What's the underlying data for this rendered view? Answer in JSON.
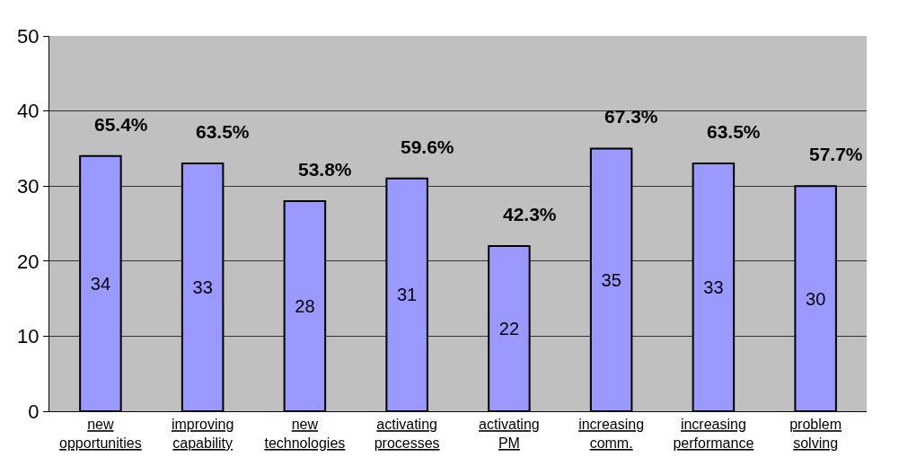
{
  "chart_data": {
    "type": "bar",
    "categories": [
      "new opportunities",
      "improving capability",
      "new technologies",
      "activating processes",
      "activating PM",
      "increasing comm.",
      "increasing performance",
      "problem solving"
    ],
    "values": [
      34,
      33,
      28,
      31,
      22,
      35,
      33,
      30
    ],
    "color": "#9999ff",
    "ylim": [
      0,
      50
    ],
    "yticks": [
      0,
      10,
      20,
      30,
      40,
      50
    ],
    "grid": "y",
    "data_labels": true,
    "annotations": [
      {
        "text": "65.4%",
        "x": "new opportunities",
        "y": 34
      },
      {
        "text": "63.5%",
        "x": "improving capability",
        "y": 33
      },
      {
        "text": "53.8%",
        "x": "new technologies",
        "y": 28
      },
      {
        "text": "59.6%",
        "x": "activating processes",
        "y": 31
      },
      {
        "text": "42.3%",
        "x": "activating PM",
        "y": 22
      },
      {
        "text": "67.3%",
        "x": "increasing comm.",
        "y": 35
      },
      {
        "text": "63.5%",
        "x": "increasing performance",
        "y": 33
      },
      {
        "text": "57.7%",
        "x": "problem solving",
        "y": 30
      }
    ]
  }
}
